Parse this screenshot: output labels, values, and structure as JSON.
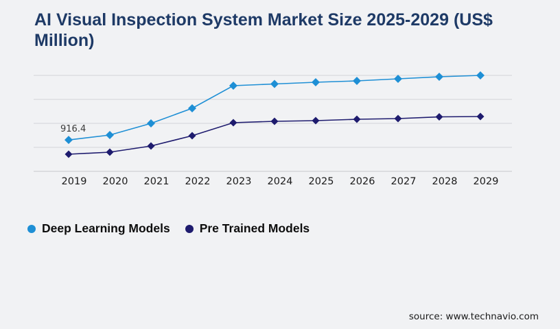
{
  "page": {
    "title": "AI Visual Inspection System Market Size 2025-2029 (US$ Million)",
    "source": "source: www.technavio.com"
  },
  "legend": {
    "items": [
      {
        "label": "Deep Learning Models",
        "color": "#1e8fd5",
        "marker": "circle-icon"
      },
      {
        "label": "Pre Trained Models",
        "color": "#1e1b6e",
        "marker": "circle-icon"
      }
    ]
  },
  "colors": {
    "background": "#f1f2f4",
    "title_text": "#1e3a66",
    "gridline": "#d3d4d8",
    "axis_line": "#c6c8cc",
    "deep_learning_series": "#1e8fd5",
    "pre_trained_series": "#1e1b6e",
    "label_text": "#1a1a1a",
    "point_label_text": "#3a3a3a"
  },
  "chart_data": {
    "type": "line",
    "title": "AI Visual Inspection System Market Size 2025-2029 (US$ Million)",
    "x": [
      2019,
      2020,
      2021,
      2022,
      2023,
      2024,
      2025,
      2026,
      2027,
      2028,
      2029
    ],
    "xlabel": "",
    "ylabel": "",
    "ylim": [
      0,
      2800
    ],
    "gridlines": [
      0,
      700,
      1400,
      2100,
      2800
    ],
    "grid": true,
    "legend_position": "bottom-left",
    "marker": "diamond",
    "series": [
      {
        "name": "Deep Learning Models",
        "color": "#1e8fd5",
        "values": [
          916.4,
          1060,
          1400,
          1840,
          2500,
          2550,
          2600,
          2640,
          2700,
          2760,
          2800
        ]
      },
      {
        "name": "Pre Trained Models",
        "color": "#1e1b6e",
        "values": [
          500,
          560,
          740,
          1040,
          1420,
          1460,
          1480,
          1520,
          1540,
          1590,
          1600
        ]
      }
    ],
    "point_labels": [
      {
        "series": "Deep Learning Models",
        "x": 2019,
        "text": "916.4"
      }
    ]
  }
}
